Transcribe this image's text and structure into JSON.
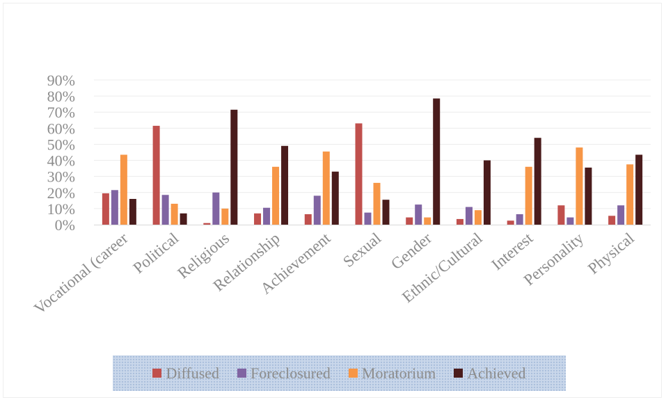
{
  "chart_data": {
    "type": "bar",
    "title": "",
    "xlabel": "",
    "ylabel": "",
    "ylim": [
      0,
      90
    ],
    "y_ticks": [
      "0%",
      "10%",
      "20%",
      "30%",
      "40%",
      "50%",
      "60%",
      "70%",
      "80%",
      "90%"
    ],
    "grid": true,
    "legend_position": "bottom",
    "categories": [
      "Vocational (career",
      "Political",
      "Religious",
      "Relationship",
      "Achievement",
      "Sexual",
      "Gender",
      "Ethnic/Cultural",
      "Interest",
      "Personality",
      "Physical"
    ],
    "series": [
      {
        "name": "Diffused",
        "color": "#c0504d",
        "values": [
          19.5,
          61.5,
          1,
          7,
          6.5,
          63,
          4.5,
          3.5,
          2.5,
          12,
          5.5
        ]
      },
      {
        "name": "Foreclosured",
        "color": "#8064a2",
        "values": [
          21.5,
          18.5,
          20,
          10.5,
          18,
          7.5,
          12.5,
          11,
          6.5,
          4.5,
          12
        ]
      },
      {
        "name": "Moratorium",
        "color": "#f79646",
        "values": [
          43.5,
          13,
          10,
          36,
          45.5,
          26,
          4.5,
          9,
          36,
          48,
          37.5
        ]
      },
      {
        "name": "Achieved",
        "color": "#4a1c1c",
        "values": [
          16,
          7,
          71.5,
          49,
          33,
          15.5,
          78.5,
          40,
          54,
          35.5,
          43.5
        ]
      }
    ]
  }
}
